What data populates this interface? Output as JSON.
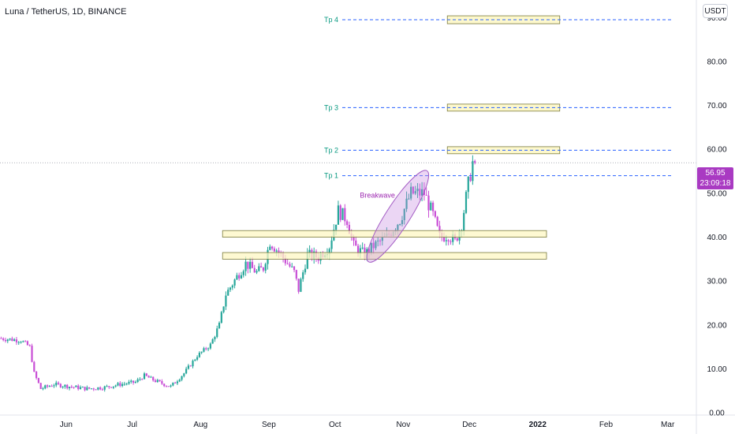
{
  "header": {
    "symbol": "Luna / TetherUS, 1D, BINANCE"
  },
  "currency_button": "USDT",
  "last_price": {
    "value": "56.95",
    "countdown": "23:09:18",
    "level": 56.95
  },
  "colors": {
    "up": "#26a69a",
    "down": "#c94fd6",
    "target_line": "#2962ff",
    "zone_fill": "#fdf7c3",
    "zone_border": "#7a7a3a",
    "ellipse": "#c78ae0",
    "label_purple": "#9c27b0",
    "target_label": "#089981"
  },
  "chart_data": {
    "type": "candlestick",
    "title": "Luna / TetherUS, 1D, BINANCE",
    "y_axis": {
      "ticks": [
        0,
        10,
        20,
        30,
        40,
        50,
        60,
        70,
        80,
        90
      ],
      "tick_labels": [
        "0.00",
        "10.00",
        "20.00",
        "30.00",
        "40.00",
        "50.00",
        "60.00",
        "70.00",
        "80.00",
        "90.00"
      ],
      "range": [
        -0.5,
        94
      ],
      "position": "right"
    },
    "x_axis": {
      "labels": [
        "Jun",
        "Jul",
        "Aug",
        "Sep",
        "Oct",
        "Nov",
        "Dec",
        "2022",
        "Feb",
        "Mar"
      ],
      "label_days": [
        30,
        60,
        91,
        122,
        152,
        183,
        213,
        244,
        275,
        303
      ],
      "bold_labels": [
        "2022"
      ],
      "range_days": [
        0,
        316
      ]
    },
    "grid": false,
    "price_path": [
      [
        0,
        17.0
      ],
      [
        10,
        16.5
      ],
      [
        14,
        15.0
      ],
      [
        16,
        9.0
      ],
      [
        19,
        5.5
      ],
      [
        25,
        6.5
      ],
      [
        32,
        6.0
      ],
      [
        40,
        5.5
      ],
      [
        48,
        5.8
      ],
      [
        55,
        6.5
      ],
      [
        62,
        7.0
      ],
      [
        66,
        8.5
      ],
      [
        70,
        7.5
      ],
      [
        75,
        6.5
      ],
      [
        78,
        6.0
      ],
      [
        84,
        9.0
      ],
      [
        90,
        13.0
      ],
      [
        96,
        15.5
      ],
      [
        100,
        20.0
      ],
      [
        103,
        27.0
      ],
      [
        108,
        31.0
      ],
      [
        112,
        34.0
      ],
      [
        117,
        32.0
      ],
      [
        120,
        33.0
      ],
      [
        123,
        39.0
      ],
      [
        128,
        36.0
      ],
      [
        134,
        32.0
      ],
      [
        136,
        28.0
      ],
      [
        140,
        36.0
      ],
      [
        145,
        35.5
      ],
      [
        150,
        38.0
      ],
      [
        154,
        46.0
      ],
      [
        158,
        44.0
      ],
      [
        161,
        38.0
      ],
      [
        166,
        36.0
      ],
      [
        170,
        38.0
      ],
      [
        176,
        40.0
      ],
      [
        182,
        44.0
      ],
      [
        187,
        50.0
      ],
      [
        193,
        50.0
      ],
      [
        197,
        45.0
      ],
      [
        200,
        40.0
      ],
      [
        204,
        40.5
      ],
      [
        207,
        39.0
      ],
      [
        210,
        43.0
      ],
      [
        213,
        52.0
      ],
      [
        215,
        57.0
      ]
    ],
    "targets": [
      {
        "label": "Tp 4",
        "value": 89.5
      },
      {
        "label": "Tp 3",
        "value": 69.5
      },
      {
        "label": "Tp 2",
        "value": 59.8
      },
      {
        "label": "Tp 1",
        "value": 54.0
      }
    ],
    "target_zones": [
      {
        "from_day": 203,
        "to_day": 254,
        "low": 88.6,
        "high": 90.4
      },
      {
        "from_day": 203,
        "to_day": 254,
        "low": 68.7,
        "high": 70.3
      },
      {
        "from_day": 203,
        "to_day": 254,
        "low": 59.0,
        "high": 60.6
      }
    ],
    "support_zones": [
      {
        "from_day": 101,
        "to_day": 248,
        "low": 40.0,
        "high": 41.5
      },
      {
        "from_day": 101,
        "to_day": 248,
        "low": 35.0,
        "high": 36.5
      }
    ],
    "annotations": [
      {
        "text": "Breakwave",
        "day": 173,
        "value": 49.5
      }
    ],
    "breakout_ellipse": {
      "start_day": 168,
      "start_value": 35.0,
      "end_day": 193,
      "end_value": 54.5
    }
  }
}
